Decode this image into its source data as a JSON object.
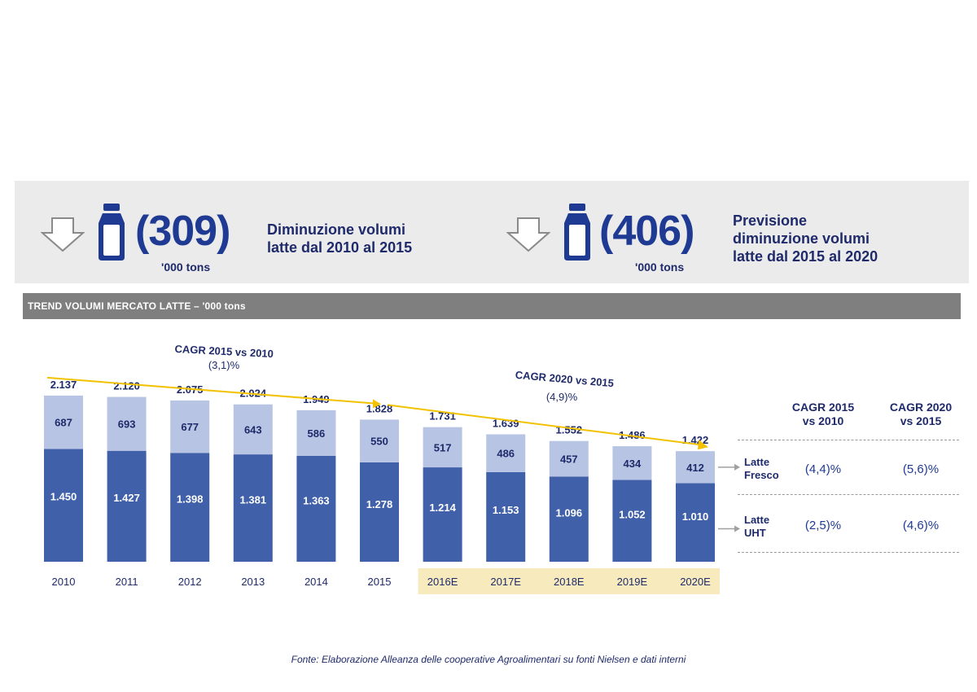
{
  "header": {
    "left": {
      "value": "(309)",
      "unit": "'000 tons",
      "desc_lines": [
        "Diminuzione volumi",
        "latte dal 2010 al 2015"
      ]
    },
    "right": {
      "value": "(406)",
      "unit": "'000 tons",
      "desc_lines": [
        "Previsione",
        "diminuzione volumi",
        "latte dal 2015 al 2020"
      ]
    }
  },
  "icons": {
    "down_arrow": "down-arrow-icon",
    "milk_bottle": "milk-bottle-icon"
  },
  "colors": {
    "dark_bar": "#4060aa",
    "light_bar": "#b7c4e3",
    "trend": "#f2c200",
    "forecast_bg": "#f7ebbd",
    "section_bg": "#7f7f7f"
  },
  "section_title": "TREND VOLUMI MERCATO LATTE – '000 tons",
  "chart_data": {
    "type": "bar",
    "stacked": true,
    "categories": [
      "2010",
      "2011",
      "2012",
      "2013",
      "2014",
      "2015",
      "2016E",
      "2017E",
      "2018E",
      "2019E",
      "2020E"
    ],
    "forecast_categories": [
      "2016E",
      "2017E",
      "2018E",
      "2019E",
      "2020E"
    ],
    "series": [
      {
        "name": "Latte UHT",
        "values_label": [
          "1.450",
          "1.427",
          "1.398",
          "1.381",
          "1.363",
          "1.278",
          "1.214",
          "1.153",
          "1.096",
          "1.052",
          "1.010"
        ],
        "values": [
          1450,
          1427,
          1398,
          1381,
          1363,
          1278,
          1214,
          1153,
          1096,
          1052,
          1010
        ]
      },
      {
        "name": "Latte Fresco",
        "values_label": [
          "687",
          "693",
          "677",
          "643",
          "586",
          "550",
          "517",
          "486",
          "457",
          "434",
          "412"
        ],
        "values": [
          687,
          693,
          677,
          643,
          586,
          550,
          517,
          486,
          457,
          434,
          412
        ]
      }
    ],
    "totals_label": [
      "2.137",
      "2.120",
      "2.075",
      "2.024",
      "1.949",
      "1.828",
      "1.731",
      "1.639",
      "1.552",
      "1.486",
      "1.422"
    ],
    "totals": [
      2137,
      2120,
      2075,
      2024,
      1949,
      1828,
      1731,
      1639,
      1552,
      1486,
      1422
    ],
    "annotations": [
      {
        "lines": [
          "CAGR 2015 vs 2010",
          "(3,1)%"
        ],
        "from": "2010",
        "to": "2015"
      },
      {
        "lines": [
          "CAGR 2020 vs 2015",
          "(4,9)%"
        ],
        "from": "2015",
        "to": "2020E"
      }
    ]
  },
  "cagr_table": {
    "headers": [
      [
        "CAGR 2015",
        "vs 2010"
      ],
      [
        "CAGR 2020",
        "vs 2015"
      ]
    ],
    "rows": [
      {
        "label_lines": [
          "Latte",
          "Fresco"
        ],
        "values": [
          "(4,4)%",
          "(5,6)%"
        ]
      },
      {
        "label_lines": [
          "Latte",
          "UHT"
        ],
        "values": [
          "(2,5)%",
          "(4,6)%"
        ]
      }
    ]
  },
  "source": "Fonte: Elaborazione Alleanza delle cooperative Agroalimentari su fonti Nielsen e dati interni"
}
